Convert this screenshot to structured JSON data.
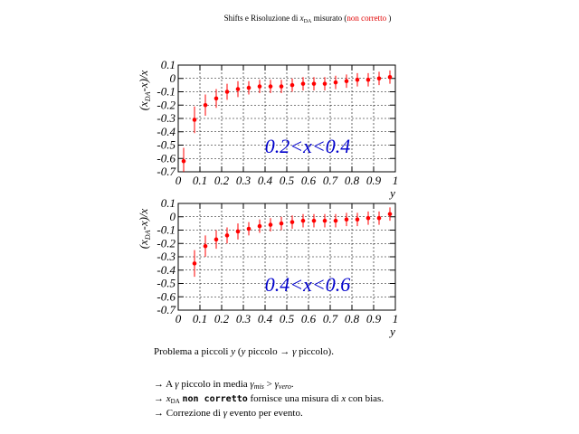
{
  "title": [
    "Shifts e Risoluzione di ",
    "x",
    "DA",
    " misurato (",
    "non corretto",
    " )"
  ],
  "chart_data": [
    {
      "type": "scatter",
      "color": "#ff0000",
      "x": [
        0.025,
        0.075,
        0.125,
        0.175,
        0.225,
        0.275,
        0.325,
        0.375,
        0.425,
        0.475,
        0.525,
        0.575,
        0.625,
        0.675,
        0.725,
        0.775,
        0.825,
        0.875,
        0.925,
        0.975
      ],
      "values": [
        -0.62,
        -0.31,
        -0.2,
        -0.15,
        -0.1,
        -0.08,
        -0.07,
        -0.06,
        -0.06,
        -0.06,
        -0.05,
        -0.04,
        -0.04,
        -0.04,
        -0.03,
        -0.02,
        -0.01,
        -0.01,
        0.0,
        0.01
      ],
      "errors": [
        0.1,
        0.1,
        0.08,
        0.07,
        0.06,
        0.06,
        0.05,
        0.05,
        0.05,
        0.05,
        0.05,
        0.05,
        0.05,
        0.05,
        0.05,
        0.05,
        0.05,
        0.05,
        0.05,
        0.05
      ],
      "xlim": [
        0,
        1
      ],
      "ylim": [
        -0.7,
        0.1
      ],
      "xticks": [
        0,
        0.1,
        0.2,
        0.3,
        0.4,
        0.5,
        0.6,
        0.7,
        0.8,
        0.9,
        1
      ],
      "yticks": [
        0.1,
        0,
        -0.1,
        -0.2,
        -0.3,
        -0.4,
        -0.5,
        -0.6,
        -0.7
      ],
      "grid": true,
      "xlabel": "y",
      "ylabel": [
        "(x",
        "DA",
        "-x)/x"
      ],
      "annotation": "0.2<x<0.4",
      "annotation_color": "#0000cc"
    },
    {
      "type": "scatter",
      "color": "#ff0000",
      "x": [
        0.075,
        0.125,
        0.175,
        0.225,
        0.275,
        0.325,
        0.375,
        0.425,
        0.475,
        0.525,
        0.575,
        0.625,
        0.675,
        0.725,
        0.775,
        0.825,
        0.875,
        0.925,
        0.975
      ],
      "values": [
        -0.35,
        -0.22,
        -0.17,
        -0.14,
        -0.11,
        -0.09,
        -0.07,
        -0.06,
        -0.05,
        -0.04,
        -0.03,
        -0.03,
        -0.03,
        -0.03,
        -0.02,
        -0.02,
        -0.01,
        -0.01,
        0.02
      ],
      "errors": [
        0.1,
        0.08,
        0.07,
        0.06,
        0.06,
        0.05,
        0.05,
        0.05,
        0.05,
        0.05,
        0.05,
        0.05,
        0.05,
        0.05,
        0.05,
        0.05,
        0.05,
        0.05,
        0.05
      ],
      "xlim": [
        0,
        1
      ],
      "ylim": [
        -0.7,
        0.1
      ],
      "xticks": [
        0,
        0.1,
        0.2,
        0.3,
        0.4,
        0.5,
        0.6,
        0.7,
        0.8,
        0.9,
        1
      ],
      "yticks": [
        0.1,
        0,
        -0.1,
        -0.2,
        -0.3,
        -0.4,
        -0.5,
        -0.6,
        -0.7
      ],
      "grid": true,
      "xlabel": "y",
      "ylabel": [
        "(x",
        "DA",
        "-x)/x"
      ],
      "annotation": "0.4<x<0.6",
      "annotation_color": "#0000cc"
    }
  ],
  "notes": [
    [
      "Problema a piccoli ",
      "y",
      " (",
      "y",
      " piccolo → ",
      "γ",
      " piccolo)."
    ],
    [
      "→ A ",
      "γ",
      " piccolo in media ",
      "γ",
      "mis",
      " > ",
      "γ",
      "vero",
      "."
    ],
    [
      "→ ",
      "x",
      "DA",
      " ",
      "non corretto",
      " fornisce una misura di ",
      "x",
      " con bias."
    ],
    [
      "→ Correzione di ",
      "γ",
      " evento per evento."
    ]
  ]
}
